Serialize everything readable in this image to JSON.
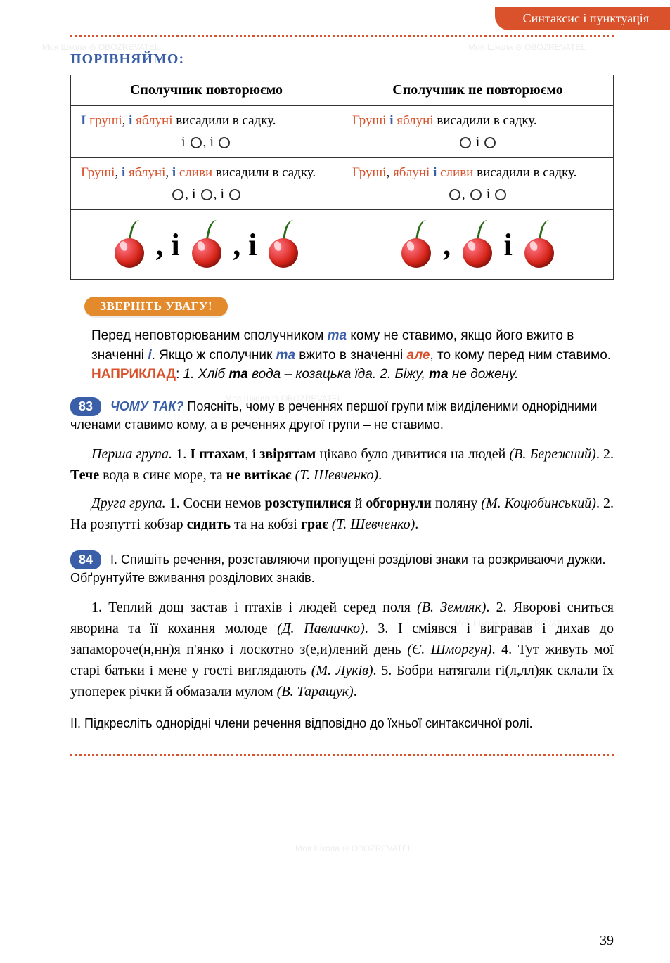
{
  "header": {
    "tab": "Синтаксис і пунктуація"
  },
  "compare": {
    "title": "ПОРІВНЯЙМО:",
    "col1_header": "Сполучник повторюємо",
    "col2_header": "Сполучник не повторюємо",
    "row1": {
      "left_html": "<span class='w-blue'>І</span> <span class='w-red'>груші</span>, <span class='w-blue'>і</span> <span class='w-red'>яблуні</span> висадили в садку.",
      "left_pattern": "і <span class='circle'></span>, і <span class='circle'></span>",
      "right_html": "<span class='w-red'>Груші</span> <span class='w-blue'>і</span> <span class='w-red'>яблуні</span> висадили в садку.",
      "right_pattern": "<span class='circle'></span> і <span class='circle'></span>"
    },
    "row2": {
      "left_html": "<span class='w-red'>Груші</span>, <span class='w-blue'>і</span> <span class='w-red'>яблуні</span>, <span class='w-blue'>і</span> <span class='w-red'>сливи</span> висадили в садку.",
      "left_pattern": "<span class='circle'></span>, і <span class='circle'></span>, і <span class='circle'></span>",
      "right_html": "<span class='w-red'>Груші</span>, <span class='w-red'>яблуні</span> <span class='w-blue'>і</span> <span class='w-red'>сливи</span> висадили в садку.",
      "right_pattern": "<span class='circle'></span>, <span class='circle'></span> і <span class='circle'></span>"
    }
  },
  "attention": {
    "badge": "ЗВЕРНІТЬ УВАГУ!",
    "text_html": "Перед неповторюваним сполучником <span class='it-blue'>та</span> кому не ставимо, якщо його вжито в значенні <span class='it-blue'>і</span>. Якщо ж сполучник <span class='it-blue'>та</span> вжито в значенні <span class='it-red'>але</span>, то кому перед ним ставимо. <span class='caps-red'>НАПРИКЛАД</span>: <span class='example'>1. Хліб <b>та</b> вода – козацька їда. 2. Біжу, <b>та</b> не дожену.</span>"
  },
  "ex83": {
    "num": "83",
    "title": "ЧОМУ ТАК?",
    "intro": "Поясніть, чому в реченнях першої групи між виділеними однорідними членами ставимо кому, а в реченнях другої групи – не ставимо.",
    "group1_html": "<em>Перша група.</em> 1. <b>І птахам</b>, і <b>звірятам</b> цікаво було дивитися на людей <em>(В. Бережний)</em>. 2. <b>Тече</b> вода в синє море, та <b>не витікає</b> <em>(Т. Шевченко)</em>.",
    "group2_html": "<em>Друга група.</em> 1. Сосни немов <b>розступилися</b> й <b>обгорнули</b> поляну <em>(М. Коцюбинський)</em>. 2. На розпутті кобзар <b>сидить</b> та на кобзі <b>грає</b> <em>(Т. Шевченко)</em>."
  },
  "ex84": {
    "num": "84",
    "part1_intro": "І. Спишіть речення, розставляючи пропущені розділові знаки та розкриваючи дужки. Обґрунтуйте вживання розділових знаків.",
    "body_html": "1. Теплий дощ застав і птахів і людей серед поля <em>(В. Земляк)</em>. 2. Яворові сниться яворина та її кохання молоде <em>(Д. Павличко)</em>. 3. І сміявся і вигравав і дихав до запамороче(н,нн)я п'янко і лоскотно з(е,и)лений день <em>(Є. Шморгун)</em>. 4. Тут живуть мої старі батьки і мене у гості виглядають <em>(М. Луків)</em>. 5. Бобри натягали гі(л,лл)як склали їх упоперек річки й обмазали мулом <em>(В. Таращук)</em>.",
    "part2_intro": "ІІ. Підкресліть однорідні члени речення відповідно до їхньої синтаксичної ролі."
  },
  "page_number": "39",
  "colors": {
    "accent_orange": "#d9522b",
    "accent_blue": "#3a5fa8",
    "badge_orange": "#e38a2d",
    "cherry_red": "#d9261b",
    "stem_green": "#2a6b1a"
  }
}
